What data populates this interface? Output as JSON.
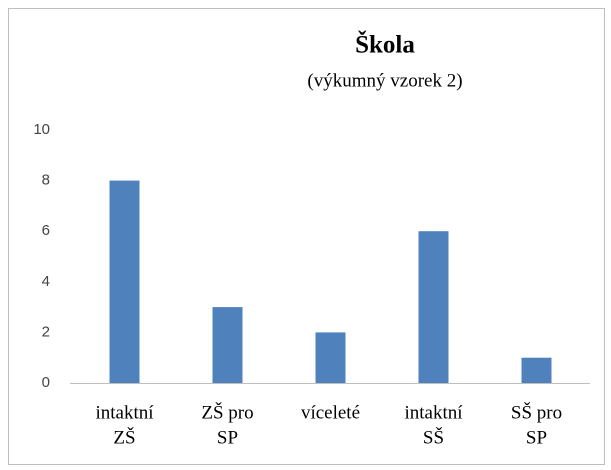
{
  "chart_data": {
    "type": "bar",
    "title": "Škola",
    "subtitle": "(výkumný vzorek 2)",
    "categories": [
      [
        "intaktní",
        "ZŠ"
      ],
      [
        "ZŠ pro",
        "SP"
      ],
      [
        "víceleté"
      ],
      [
        "intaktní",
        "SŠ"
      ],
      [
        "SŠ pro",
        "SP"
      ]
    ],
    "values": [
      8,
      3,
      2,
      6,
      1
    ],
    "color": "#4f81bd",
    "ylim": [
      0,
      10
    ],
    "yticks": [
      0,
      2,
      4,
      6,
      8,
      10
    ],
    "grid": false
  }
}
